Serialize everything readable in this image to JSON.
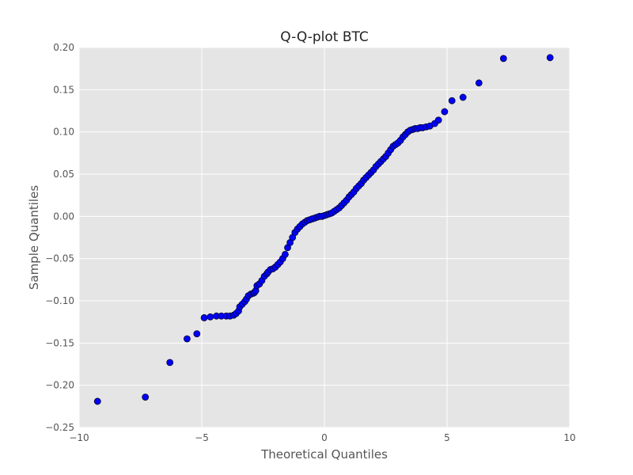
{
  "chart_data": {
    "type": "scatter",
    "title": "Q-Q-plot BTC",
    "xlabel": "Theoretical Quantiles",
    "ylabel": "Sample Quantiles",
    "xlim": [
      -10,
      10
    ],
    "ylim": [
      -0.25,
      0.2
    ],
    "xticks": [
      -10,
      -5,
      0,
      5,
      10
    ],
    "xtick_labels": [
      "−10",
      "−5",
      "0",
      "5",
      "10"
    ],
    "yticks": [
      -0.25,
      -0.2,
      -0.15,
      -0.1,
      -0.05,
      0.0,
      0.05,
      0.1,
      0.15,
      0.2
    ],
    "ytick_labels": [
      "−0.25",
      "−0.20",
      "−0.15",
      "−0.10",
      "−0.05",
      "0.00",
      "0.05",
      "0.10",
      "0.15",
      "0.20"
    ],
    "grid": true,
    "legend": "none",
    "colors": {
      "plot_background": "#e5e5e5",
      "grid": "#ffffff",
      "marker_fill": "#0000ff",
      "marker_edge": "#000033"
    },
    "series": [
      {
        "points": [
          [
            -9.25,
            -0.219
          ],
          [
            -7.3,
            -0.214
          ],
          [
            -6.3,
            -0.173
          ],
          [
            -5.6,
            -0.145
          ],
          [
            -5.2,
            -0.139
          ],
          [
            -4.9,
            -0.12
          ],
          [
            -4.65,
            -0.119
          ],
          [
            -4.4,
            -0.118
          ],
          [
            -4.2,
            -0.118
          ],
          [
            -4.0,
            -0.118
          ],
          [
            -3.85,
            -0.118
          ],
          [
            -3.7,
            -0.117
          ],
          [
            -3.6,
            -0.115
          ],
          [
            -3.5,
            -0.112
          ],
          [
            -3.45,
            -0.107
          ],
          [
            -3.35,
            -0.104
          ],
          [
            -3.25,
            -0.101
          ],
          [
            -3.18,
            -0.098
          ],
          [
            -3.1,
            -0.094
          ],
          [
            -3.0,
            -0.092
          ],
          [
            -2.9,
            -0.091
          ],
          [
            -2.85,
            -0.09
          ],
          [
            -2.8,
            -0.088
          ],
          [
            -2.75,
            -0.082
          ],
          [
            -2.65,
            -0.08
          ],
          [
            -2.55,
            -0.076
          ],
          [
            -2.45,
            -0.071
          ],
          [
            -2.35,
            -0.068
          ],
          [
            -2.3,
            -0.066
          ],
          [
            -2.2,
            -0.063
          ],
          [
            -2.1,
            -0.062
          ],
          [
            -2.0,
            -0.06
          ],
          [
            -1.9,
            -0.057
          ],
          [
            -1.8,
            -0.054
          ],
          [
            -1.7,
            -0.05
          ],
          [
            -1.6,
            -0.045
          ],
          [
            -1.5,
            -0.037
          ],
          [
            -1.4,
            -0.031
          ],
          [
            -1.3,
            -0.025
          ],
          [
            -1.2,
            -0.019
          ],
          [
            -1.1,
            -0.015
          ],
          [
            -1.0,
            -0.012
          ],
          [
            -0.9,
            -0.009
          ],
          [
            -0.8,
            -0.007
          ],
          [
            -0.7,
            -0.005
          ],
          [
            -0.6,
            -0.004
          ],
          [
            -0.5,
            -0.003
          ],
          [
            -0.4,
            -0.002
          ],
          [
            -0.3,
            -0.001
          ],
          [
            -0.2,
            0.0
          ],
          [
            -0.1,
            0.0
          ],
          [
            0.0,
            0.001
          ],
          [
            0.1,
            0.002
          ],
          [
            0.2,
            0.003
          ],
          [
            0.3,
            0.004
          ],
          [
            0.4,
            0.006
          ],
          [
            0.5,
            0.008
          ],
          [
            0.6,
            0.01
          ],
          [
            0.7,
            0.013
          ],
          [
            0.8,
            0.016
          ],
          [
            0.9,
            0.019
          ],
          [
            1.0,
            0.023
          ],
          [
            1.1,
            0.026
          ],
          [
            1.2,
            0.029
          ],
          [
            1.3,
            0.033
          ],
          [
            1.4,
            0.036
          ],
          [
            1.5,
            0.039
          ],
          [
            1.6,
            0.043
          ],
          [
            1.7,
            0.046
          ],
          [
            1.8,
            0.049
          ],
          [
            1.9,
            0.052
          ],
          [
            2.0,
            0.055
          ],
          [
            2.1,
            0.059
          ],
          [
            2.2,
            0.062
          ],
          [
            2.3,
            0.065
          ],
          [
            2.4,
            0.068
          ],
          [
            2.5,
            0.071
          ],
          [
            2.6,
            0.075
          ],
          [
            2.7,
            0.079
          ],
          [
            2.8,
            0.083
          ],
          [
            2.9,
            0.085
          ],
          [
            3.0,
            0.087
          ],
          [
            3.1,
            0.09
          ],
          [
            3.2,
            0.094
          ],
          [
            3.3,
            0.097
          ],
          [
            3.4,
            0.1
          ],
          [
            3.5,
            0.102
          ],
          [
            3.6,
            0.103
          ],
          [
            3.7,
            0.104
          ],
          [
            3.8,
            0.104
          ],
          [
            3.9,
            0.105
          ],
          [
            4.0,
            0.105
          ],
          [
            4.15,
            0.106
          ],
          [
            4.3,
            0.107
          ],
          [
            4.5,
            0.11
          ],
          [
            4.65,
            0.114
          ],
          [
            4.9,
            0.124
          ],
          [
            5.2,
            0.137
          ],
          [
            5.65,
            0.141
          ],
          [
            6.3,
            0.158
          ],
          [
            7.3,
            0.187
          ],
          [
            9.2,
            0.188
          ]
        ]
      }
    ]
  }
}
